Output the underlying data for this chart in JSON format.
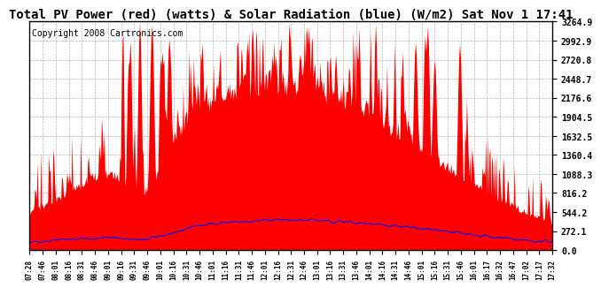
{
  "title": "Total PV Power (red) (watts) & Solar Radiation (blue) (W/m2) Sat Nov 1 17:41",
  "copyright": "Copyright 2008 Cartronics.com",
  "y_ticks": [
    0.0,
    272.1,
    544.2,
    816.2,
    1088.3,
    1360.4,
    1632.5,
    1904.5,
    2176.6,
    2448.7,
    2720.8,
    2992.9,
    3264.9
  ],
  "y_max": 3264.9,
  "x_labels": [
    "07:28",
    "07:46",
    "08:01",
    "08:16",
    "08:31",
    "08:46",
    "09:01",
    "09:16",
    "09:31",
    "09:46",
    "10:01",
    "10:16",
    "10:31",
    "10:46",
    "11:01",
    "11:16",
    "11:31",
    "11:46",
    "12:01",
    "12:16",
    "12:31",
    "12:46",
    "13:01",
    "13:16",
    "13:31",
    "13:46",
    "14:01",
    "14:16",
    "14:31",
    "14:46",
    "15:01",
    "15:16",
    "15:31",
    "15:46",
    "16:01",
    "16:17",
    "16:32",
    "16:47",
    "17:02",
    "17:17",
    "17:32"
  ],
  "background_color": "#ffffff",
  "plot_bg_color": "#ffffff",
  "grid_color": "#999999",
  "red_fill_color": "#ff0000",
  "blue_line_color": "#0000ff",
  "title_fontsize": 10,
  "copyright_fontsize": 7
}
